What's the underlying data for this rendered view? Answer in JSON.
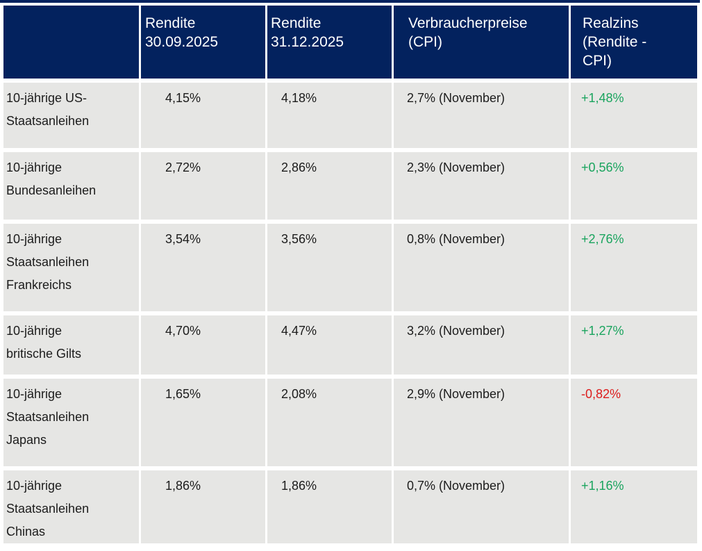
{
  "colors": {
    "header_bg": "#03225e",
    "header_text": "#ffffff",
    "cell_bg": "#e6e6e4",
    "body_text": "#1c1c1c",
    "positive": "#1aa45e",
    "negative": "#dc1d1d"
  },
  "table": {
    "header": [
      "",
      "Rendite\n30.09.2025",
      "Rendite\n31.12.2025",
      "Verbraucherpreise\n(CPI)",
      "Realzins\n(Rendite -\nCPI)"
    ],
    "rows": [
      {
        "label": "10-jährige US-\nStaatsanleihen",
        "rendite_30_09_2025": "4,15%",
        "rendite_31_12_2025": "4,18%",
        "cpi": "2,7% (November)",
        "realzins": "+1,48%",
        "realzins_trend": "positive"
      },
      {
        "label": "10-jährige\nBundesanleihen",
        "rendite_30_09_2025": "2,72%",
        "rendite_31_12_2025": "2,86%",
        "cpi": "2,3% (November)",
        "realzins": "+0,56%",
        "realzins_trend": "positive"
      },
      {
        "label": "10-jährige\nStaatsanleihen\nFrankreichs",
        "rendite_30_09_2025": "3,54%",
        "rendite_31_12_2025": "3,56%",
        "cpi": "0,8% (November)",
        "realzins": "+2,76%",
        "realzins_trend": "positive"
      },
      {
        "label": "10-jährige\nbritische Gilts",
        "rendite_30_09_2025": "4,70%",
        "rendite_31_12_2025": "4,47%",
        "cpi": "3,2% (November)",
        "realzins": "+1,27%",
        "realzins_trend": "positive"
      },
      {
        "label": "10-jährige\nStaatsanleihen\nJapans",
        "rendite_30_09_2025": "1,65%",
        "rendite_31_12_2025": "2,08%",
        "cpi": "2,9% (November)",
        "realzins": "-0,82%",
        "realzins_trend": "negative"
      },
      {
        "label": "10-jährige\nStaatsanleihen\nChinas",
        "rendite_30_09_2025": "1,86%",
        "rendite_31_12_2025": "1,86%",
        "cpi": "0,7% (November)",
        "realzins": "+1,16%",
        "realzins_trend": "positive"
      }
    ]
  },
  "chart_data": {
    "type": "table",
    "columns": [
      "",
      "Rendite 30.09.2025",
      "Rendite 31.12.2025",
      "Verbraucherpreise (CPI)",
      "Realzins (Rendite - CPI)"
    ],
    "rows": [
      [
        "10-jährige US-Staatsanleihen",
        "4,15%",
        "4,18%",
        "2,7% (November)",
        "+1,48%"
      ],
      [
        "10-jährige Bundesanleihen",
        "2,72%",
        "2,86%",
        "2,3% (November)",
        "+0,56%"
      ],
      [
        "10-jährige Staatsanleihen Frankreichs",
        "3,54%",
        "3,56%",
        "0,8% (November)",
        "+2,76%"
      ],
      [
        "10-jährige britische Gilts",
        "4,70%",
        "4,47%",
        "3,2% (November)",
        "+1,27%"
      ],
      [
        "10-jährige Staatsanleihen Japans",
        "1,65%",
        "2,08%",
        "2,9% (November)",
        "-0,82%"
      ],
      [
        "10-jährige Staatsanleihen Chinas",
        "1,86%",
        "1,86%",
        "0,7% (November)",
        "+1,16%"
      ]
    ]
  }
}
